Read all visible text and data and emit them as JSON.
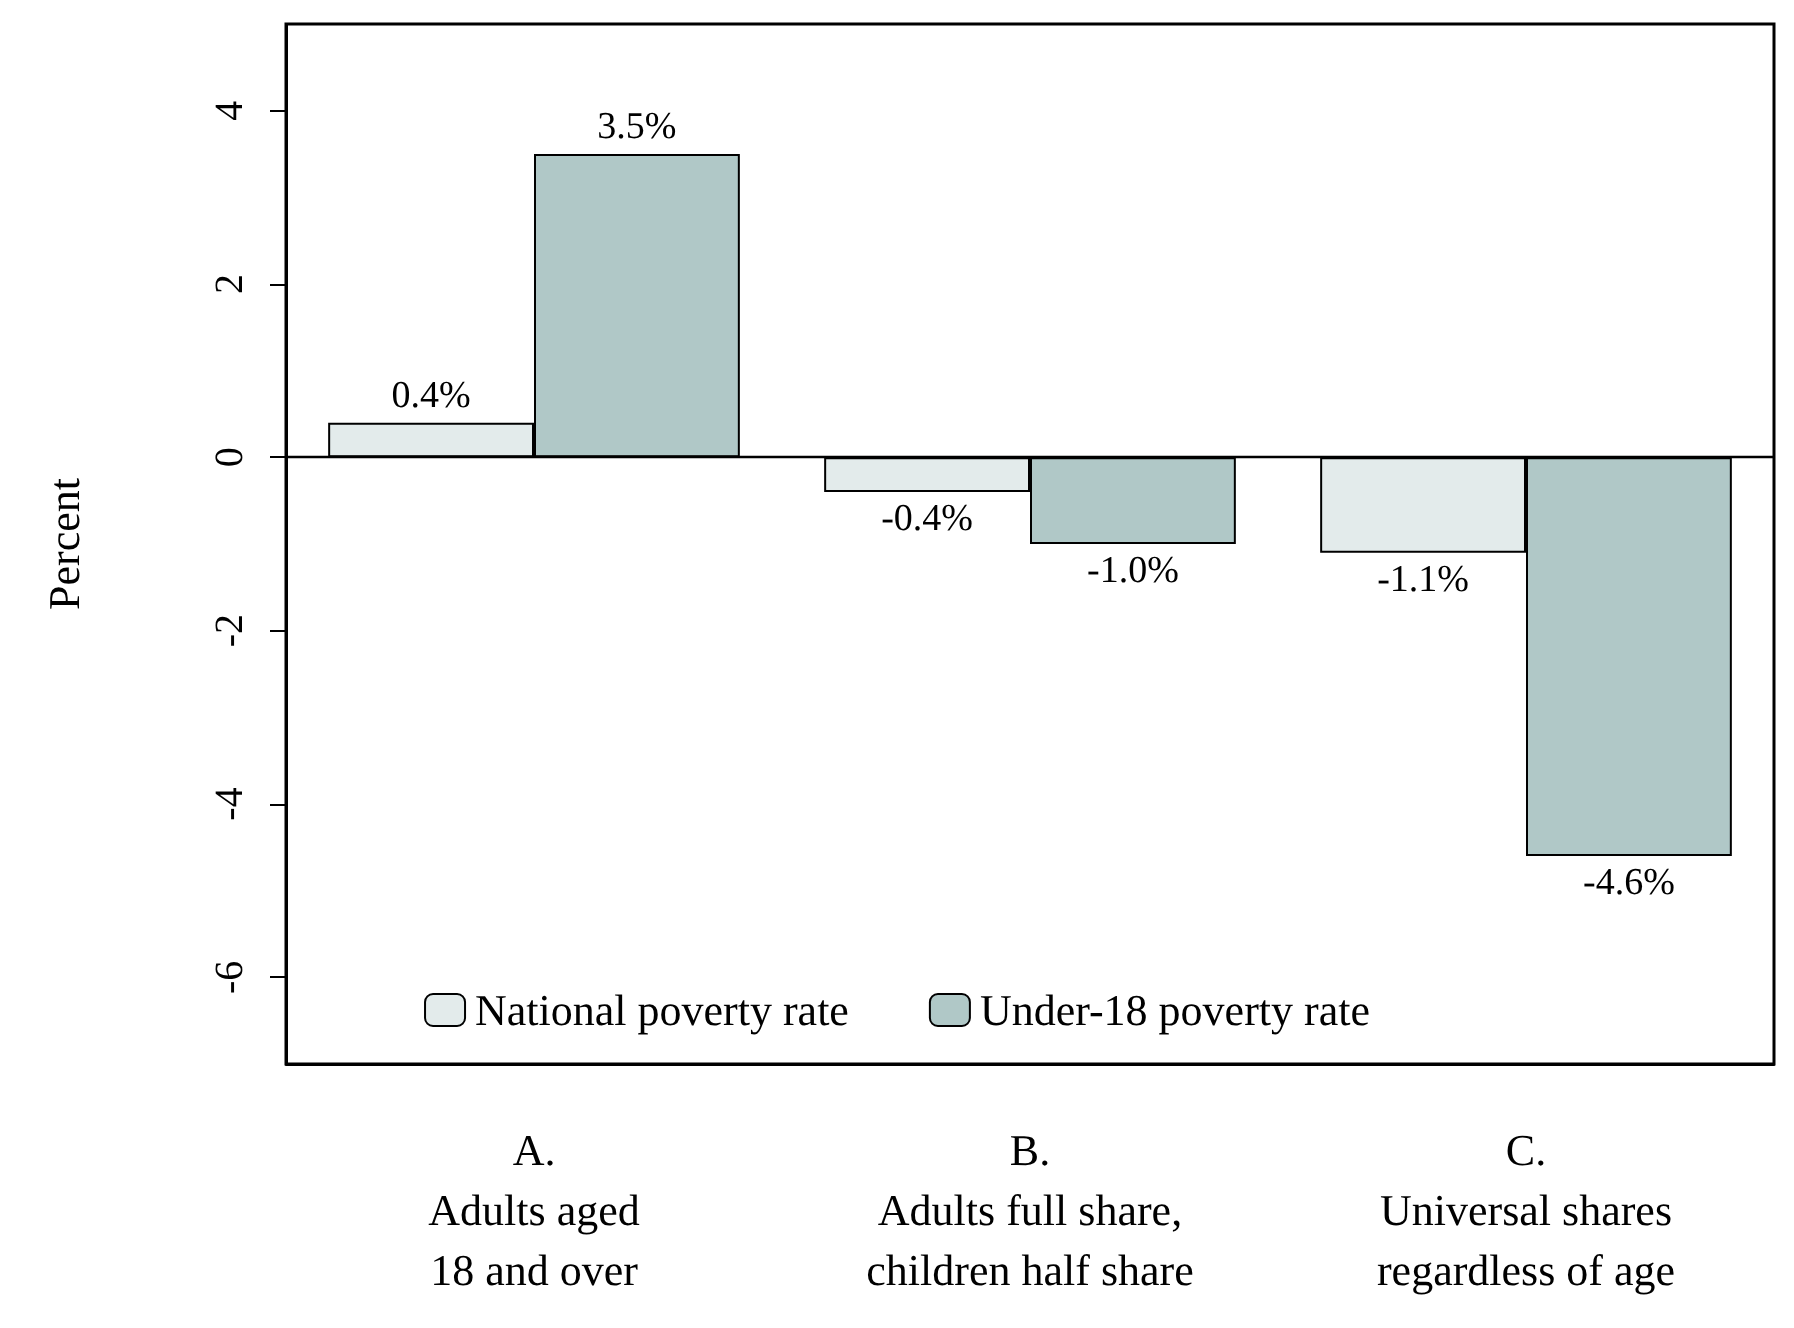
{
  "chart_data": {
    "type": "bar",
    "ylabel": "Percent",
    "categories": [
      "A.\nAdults aged\n18 and over",
      "B.\nAdults full share,\nchildren half share",
      "C.\nUniversal shares\nregardless of age"
    ],
    "series": [
      {
        "name": "National poverty rate",
        "color": "#e3ebeb",
        "values": [
          0.4,
          -0.4,
          -1.1
        ],
        "value_labels": [
          "0.4%",
          "-0.4%",
          "-1.1%"
        ]
      },
      {
        "name": "Under-18 poverty rate",
        "color": "#b0c8c7",
        "values": [
          3.5,
          -1.0,
          -4.6
        ],
        "value_labels": [
          "3.5%",
          "-1.0%",
          "-4.6%"
        ]
      }
    ],
    "ylim": [
      -7,
      5
    ],
    "yticks": [
      -6,
      -4,
      -2,
      0,
      2,
      4
    ],
    "ref_lines": [
      {
        "axis": "y",
        "value": 0
      }
    ],
    "legend": "bottom",
    "grid": false
  }
}
